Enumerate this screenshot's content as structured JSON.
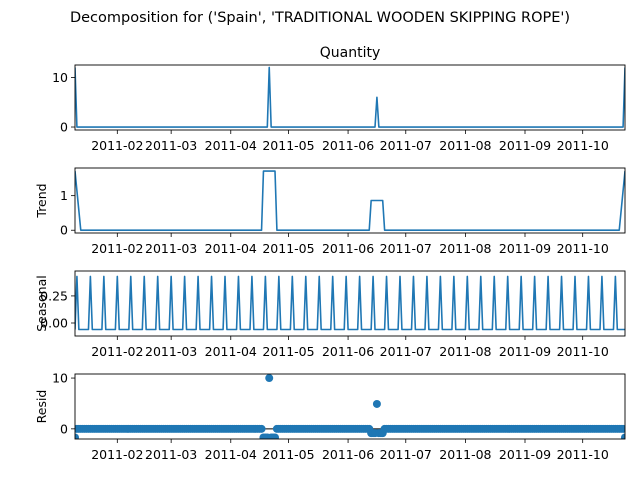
{
  "figure_title": "Decomposition for ('Spain', 'TRADITIONAL WOODEN SKIPPING ROPE')",
  "chart_data": [
    {
      "name": "observed",
      "type": "line",
      "title": "Quantity",
      "ylabel": "",
      "x_range": [
        "2011-01-10",
        "2011-10-23"
      ],
      "ylim": [
        -0.6,
        12.5
      ],
      "y_ticks": [
        0,
        10
      ],
      "baseline": 0,
      "spikes": [
        {
          "date": "2011-01-10",
          "value": 12
        },
        {
          "date": "2011-04-21",
          "value": 12
        },
        {
          "date": "2011-06-16",
          "value": 6
        },
        {
          "date": "2011-10-23",
          "value": 12
        }
      ]
    },
    {
      "name": "trend",
      "type": "line",
      "title": "",
      "ylabel": "Trend",
      "x_range": [
        "2011-01-10",
        "2011-10-23"
      ],
      "ylim": [
        -0.08,
        1.8
      ],
      "y_ticks": [
        0,
        1
      ],
      "points": [
        {
          "date": "2011-01-10",
          "value": 1.71
        },
        {
          "date": "2011-01-13",
          "value": 0
        },
        {
          "date": "2011-04-17",
          "value": 0
        },
        {
          "date": "2011-04-18",
          "value": 1.71
        },
        {
          "date": "2011-04-24",
          "value": 1.71
        },
        {
          "date": "2011-04-25",
          "value": 0
        },
        {
          "date": "2011-06-12",
          "value": 0
        },
        {
          "date": "2011-06-13",
          "value": 0.86
        },
        {
          "date": "2011-06-19",
          "value": 0.86
        },
        {
          "date": "2011-06-20",
          "value": 0
        },
        {
          "date": "2011-10-20",
          "value": 0
        },
        {
          "date": "2011-10-23",
          "value": 1.71
        }
      ]
    },
    {
      "name": "seasonal",
      "type": "line",
      "title": "",
      "ylabel": "Seasonal",
      "x_range": [
        "2011-01-10",
        "2011-10-23"
      ],
      "ylim": [
        -0.12,
        0.48
      ],
      "y_ticks": [
        0.0,
        0.25
      ],
      "y_tick_labels": [
        "0.00",
        "0.25"
      ],
      "period_days": 7,
      "first_peak": "2011-01-11",
      "peak_value": 0.43,
      "low_value": -0.06
    },
    {
      "name": "resid",
      "type": "scatter",
      "title": "",
      "ylabel": "Resid",
      "x_range": [
        "2011-01-10",
        "2011-10-23"
      ],
      "ylim": [
        -2.0,
        10.8
      ],
      "y_ticks": [
        0,
        10
      ],
      "baseline": 0,
      "typical_value": 0,
      "outliers": [
        {
          "date": "2011-01-10",
          "value": -1.7
        },
        {
          "date": "2011-04-18",
          "value": -1.7
        },
        {
          "date": "2011-04-19",
          "value": -1.7
        },
        {
          "date": "2011-04-20",
          "value": -1.7
        },
        {
          "date": "2011-04-21",
          "value": 10.0
        },
        {
          "date": "2011-04-22",
          "value": -1.7
        },
        {
          "date": "2011-04-23",
          "value": -1.7
        },
        {
          "date": "2011-04-24",
          "value": -1.7
        },
        {
          "date": "2011-06-13",
          "value": -0.85
        },
        {
          "date": "2011-06-14",
          "value": -0.85
        },
        {
          "date": "2011-06-15",
          "value": -0.85
        },
        {
          "date": "2011-06-16",
          "value": 4.9
        },
        {
          "date": "2011-06-17",
          "value": -0.85
        },
        {
          "date": "2011-06-18",
          "value": -0.85
        },
        {
          "date": "2011-06-19",
          "value": -0.85
        },
        {
          "date": "2011-10-23",
          "value": -1.7
        }
      ]
    }
  ],
  "x_ticks": [
    "2011-02",
    "2011-03",
    "2011-04",
    "2011-05",
    "2011-06",
    "2011-07",
    "2011-08",
    "2011-09",
    "2011-10"
  ],
  "x_tick_dates": [
    "2011-02-01",
    "2011-03-01",
    "2011-04-01",
    "2011-05-01",
    "2011-06-01",
    "2011-07-01",
    "2011-08-01",
    "2011-09-01",
    "2011-10-01"
  ],
  "colors": {
    "series": "#1f77b4",
    "frame": "#000000",
    "background": "#ffffff"
  }
}
